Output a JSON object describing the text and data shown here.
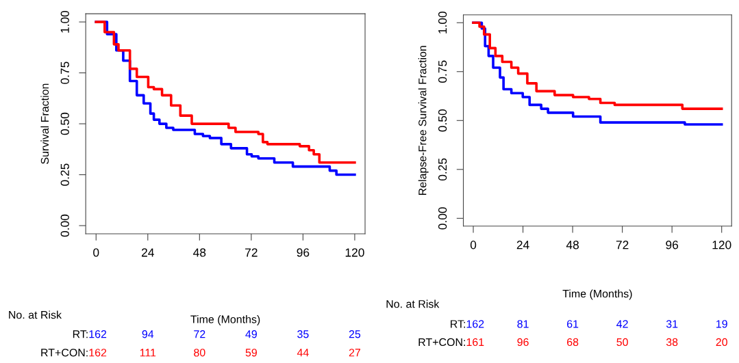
{
  "chart_data": [
    {
      "type": "step",
      "ylabel": "Survival Fraction",
      "xlabel": "Time (Months)",
      "xlim": [
        -4.8,
        124.8
      ],
      "ylim": [
        -0.04,
        1.04
      ],
      "xticks": [
        0,
        24,
        48,
        72,
        96,
        120
      ],
      "yticks": [
        {
          "value": 0,
          "label": "0.00"
        },
        {
          "value": 0.25,
          "label": "0.25"
        },
        {
          "value": 0.5,
          "label": "0.50"
        },
        {
          "value": 0.75,
          "label": "0.75"
        },
        {
          "value": 1,
          "label": "1.00"
        }
      ],
      "grid": false,
      "legend": false,
      "series": [
        {
          "color": "#0000ff",
          "x": [
            0,
            1.9,
            5.1,
            9.4,
            12.6,
            15.7,
            18.9,
            22.1,
            25.2,
            26.8,
            29.4,
            32.6,
            35.8,
            42.1,
            45.8,
            49.6,
            52.8,
            58.1,
            62.6,
            70,
            72.2,
            75.3,
            82.7,
            91.3,
            108.4,
            111.5,
            120
          ],
          "values": [
            1,
            1,
            0.94,
            0.86,
            0.81,
            0.71,
            0.64,
            0.6,
            0.55,
            0.52,
            0.5,
            0.48,
            0.47,
            0.47,
            0.45,
            0.44,
            0.43,
            0.4,
            0.38,
            0.35,
            0.34,
            0.33,
            0.31,
            0.29,
            0.27,
            0.25,
            0.25
          ]
        },
        {
          "color": "#ff0000",
          "x": [
            0,
            4,
            8.3,
            10.4,
            13,
            15.7,
            18.9,
            24.2,
            26.8,
            30.6,
            34.8,
            39.1,
            44.4,
            47.7,
            61.5,
            64.7,
            75.3,
            77.4,
            79.5,
            94.5,
            98.8,
            101,
            103.6,
            120
          ],
          "values": [
            1,
            0.95,
            0.89,
            0.86,
            0.86,
            0.77,
            0.73,
            0.68,
            0.67,
            0.64,
            0.59,
            0.54,
            0.5,
            0.5,
            0.48,
            0.46,
            0.45,
            0.41,
            0.4,
            0.39,
            0.37,
            0.35,
            0.31,
            0.31
          ]
        }
      ],
      "annotations": [
        "No. at Risk",
        "RT:",
        "162",
        "94",
        "72",
        "49",
        "35",
        "25",
        "RT+CON:",
        "162",
        "111",
        "80",
        "59",
        "44",
        "27"
      ]
    },
    {
      "type": "step",
      "ylabel": "Relapse-Free Survival Fraction",
      "xlabel": "Time (Months)",
      "xlim": [
        -4.8,
        124.8
      ],
      "ylim": [
        -0.04,
        1.04
      ],
      "xticks": [
        0,
        24,
        48,
        72,
        96,
        120
      ],
      "yticks": [
        {
          "value": 0,
          "label": "0.00"
        },
        {
          "value": 0.25,
          "label": "0.25"
        },
        {
          "value": 0.5,
          "label": "0.50"
        },
        {
          "value": 0.75,
          "label": "0.75"
        },
        {
          "value": 1,
          "label": "1.00"
        }
      ],
      "grid": false,
      "legend": false,
      "series": [
        {
          "color": "#0000ff",
          "x": [
            0,
            4.1,
            5.7,
            7.4,
            9.6,
            12.9,
            14.6,
            18.4,
            23.9,
            27.2,
            32.8,
            36.1,
            48.2,
            55.9,
            61.4,
            102.2,
            120
          ],
          "values": [
            1,
            0.97,
            0.88,
            0.83,
            0.77,
            0.72,
            0.66,
            0.64,
            0.62,
            0.58,
            0.56,
            0.54,
            0.52,
            0.52,
            0.49,
            0.48,
            0.48
          ]
        },
        {
          "color": "#ff0000",
          "x": [
            0,
            3,
            5.2,
            8,
            10.7,
            14,
            18.4,
            21.7,
            26.1,
            30.5,
            39.3,
            48.2,
            55.9,
            61.4,
            68.3,
            101,
            120
          ],
          "values": [
            1,
            0.98,
            0.94,
            0.87,
            0.83,
            0.8,
            0.77,
            0.74,
            0.69,
            0.65,
            0.63,
            0.62,
            0.61,
            0.59,
            0.58,
            0.56,
            0.56
          ]
        }
      ],
      "annotations": [
        "No. at Risk",
        "RT:",
        "162",
        "81",
        "61",
        "42",
        "31",
        "19",
        "RT+CON:",
        "161",
        "96",
        "68",
        "50",
        "38",
        "20"
      ]
    }
  ]
}
